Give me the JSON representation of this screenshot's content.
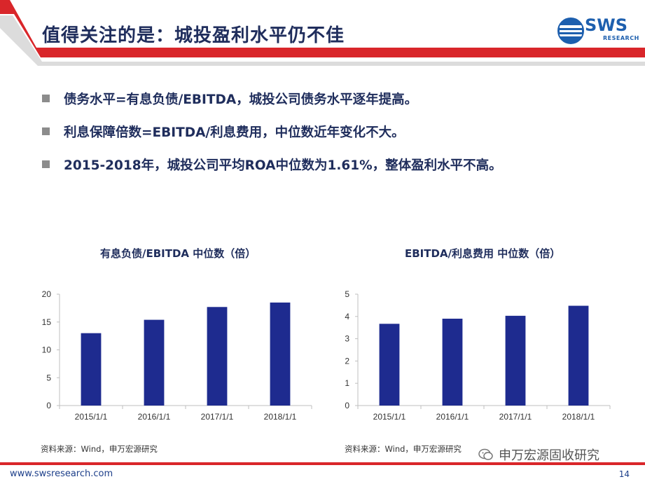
{
  "header": {
    "title": "值得关注的是：城投盈利水平仍不佳",
    "logo_text": "SWS",
    "logo_subtext": "RESEARCH",
    "colors": {
      "red": "#d9262a",
      "grey": "#dcdcdc",
      "navy": "#1f2d5c",
      "logo_blue": "#1d5fae"
    }
  },
  "bullets": [
    "债务水平=有息负债/EBITDA，城投公司债务水平逐年提高。",
    "利息保障倍数=EBITDA/利息费用，中位数近年变化不大。",
    "2015-2018年，城投公司平均ROA中位数为1.61%，整体盈利水平不高。"
  ],
  "chart_data": [
    {
      "type": "bar",
      "title": "有息负债/EBITDA 中位数（倍）",
      "categories": [
        "2015/1/1",
        "2016/1/1",
        "2017/1/1",
        "2018/1/1"
      ],
      "values": [
        13.0,
        15.4,
        17.7,
        18.5
      ],
      "ylim": [
        0,
        20
      ],
      "yticks": [
        "0",
        "5",
        "10",
        "15",
        "20"
      ],
      "bar_color": "#1e2b8f",
      "grid": false
    },
    {
      "type": "bar",
      "title": "EBITDA/利息费用  中位数（倍）",
      "categories": [
        "2015/1/1",
        "2016/1/1",
        "2017/1/1",
        "2018/1/1"
      ],
      "values": [
        3.67,
        3.9,
        4.03,
        4.48
      ],
      "ylim": [
        0,
        5
      ],
      "yticks": [
        "0",
        "1",
        "2",
        "3",
        "4",
        "5"
      ],
      "bar_color": "#1e2b8f",
      "grid": false
    }
  ],
  "sources": [
    "资料来源：Wind，申万宏源研究",
    "资料来源：Wind，申万宏源研究"
  ],
  "footer": {
    "url": "www.swsresearch.com",
    "page": "14",
    "watermark": "申万宏源固收研究"
  }
}
